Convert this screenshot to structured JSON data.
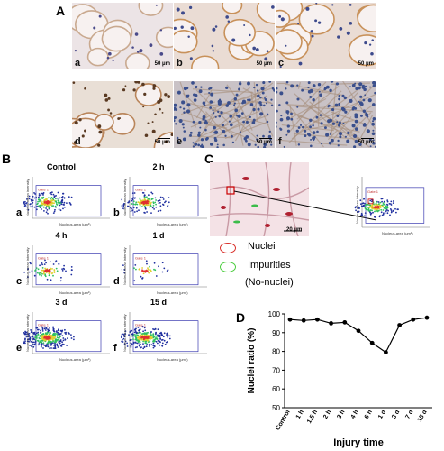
{
  "panel_a": {
    "letter": "A",
    "images": [
      {
        "sub": "a",
        "scale": "50 μm",
        "tone": "adipose-sparse"
      },
      {
        "sub": "b",
        "scale": "50 μm",
        "tone": "adipose-stroma"
      },
      {
        "sub": "c",
        "scale": "50 μm",
        "tone": "adipose-stroma"
      },
      {
        "sub": "d",
        "scale": "50 μm",
        "tone": "adipose-dense"
      },
      {
        "sub": "e",
        "scale": "50 μm",
        "tone": "cellular"
      },
      {
        "sub": "f",
        "scale": "50 μm",
        "tone": "cellular"
      }
    ]
  },
  "panel_b": {
    "letter": "B",
    "gate_label": "Gate 1",
    "y_axis": "Nucleus-mean intensity",
    "x_axis": "Nucleus-area (μm²)",
    "plots": [
      {
        "title": "Control",
        "sub": "a",
        "density": 260
      },
      {
        "title": "2 h",
        "sub": "b",
        "density": 220
      },
      {
        "title": "4 h",
        "sub": "c",
        "density": 120
      },
      {
        "title": "1 d",
        "sub": "d",
        "density": 60
      },
      {
        "title": "3 d",
        "sub": "e",
        "density": 520
      },
      {
        "title": "15 d",
        "sub": "f",
        "density": 420
      }
    ]
  },
  "panel_c": {
    "letter": "C",
    "scale": "20 μm",
    "legend": [
      {
        "label": "Nuclei",
        "color": "#d9302a"
      },
      {
        "label": "Impurities",
        "color": "#4ccd3f"
      }
    ],
    "legend_note": "(No-nuclei)",
    "gate_label": "Gate 1",
    "y_axis": "Nucleus-mean intensity",
    "x_axis": "Nucleus-area (μm²)"
  },
  "panel_d": {
    "letter": "D",
    "chart_data": {
      "type": "line",
      "categories": [
        "Control",
        "1 h",
        "1.5 h",
        "2 h",
        "3 h",
        "4 h",
        "6 h",
        "1 d",
        "3 d",
        "7 d",
        "15 d"
      ],
      "values": [
        97,
        96.5,
        97,
        95,
        95.5,
        91,
        84.5,
        79.5,
        94,
        97,
        98
      ],
      "xlabel": "Injury time",
      "ylabel": "Nuclei ratio (%)",
      "ylim": [
        50,
        100
      ],
      "yticks": [
        50,
        60,
        70,
        80,
        90,
        100
      ]
    }
  }
}
